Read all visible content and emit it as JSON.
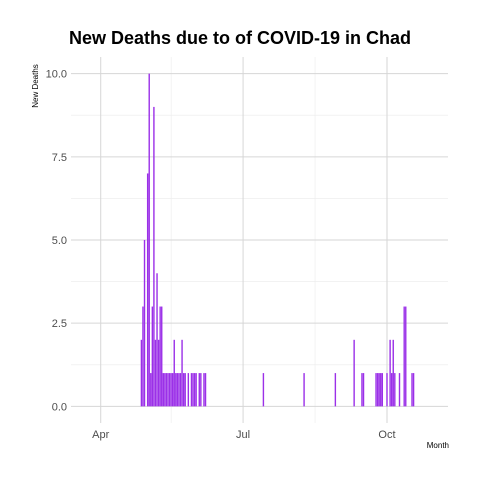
{
  "chart_data": {
    "type": "bar",
    "title": "New Deaths due to of COVID-19 in Chad",
    "xlabel": "Month",
    "ylabel": "New Deaths",
    "x_type": "date",
    "xlim": [
      "2020-03-13",
      "2020-11-09"
    ],
    "ylim": [
      -0.5,
      10.5
    ],
    "x_ticks": [
      {
        "date": "2020-04-01",
        "label": "Apr"
      },
      {
        "date": "2020-07-01",
        "label": "Jul"
      },
      {
        "date": "2020-10-01",
        "label": "Oct"
      }
    ],
    "x_minor_gridlines": [
      "2020-05-16",
      "2020-08-16"
    ],
    "y_ticks": [
      {
        "value": 0,
        "label": "0.0"
      },
      {
        "value": 2.5,
        "label": "2.5"
      },
      {
        "value": 5,
        "label": "5.0"
      },
      {
        "value": 7.5,
        "label": "7.5"
      },
      {
        "value": 10,
        "label": "10.0"
      }
    ],
    "bar_color": "#9b30e8",
    "grid": true,
    "series": [
      {
        "x": [
          "2020-04-27",
          "2020-04-28",
          "2020-04-29",
          "2020-05-01",
          "2020-05-02",
          "2020-05-03",
          "2020-05-04",
          "2020-05-05",
          "2020-05-06",
          "2020-05-07",
          "2020-05-08",
          "2020-05-09",
          "2020-05-10",
          "2020-05-11",
          "2020-05-12",
          "2020-05-13",
          "2020-05-14",
          "2020-05-15",
          "2020-05-16",
          "2020-05-17",
          "2020-05-18",
          "2020-05-19",
          "2020-05-20",
          "2020-05-21",
          "2020-05-22",
          "2020-05-23",
          "2020-05-24",
          "2020-05-25",
          "2020-05-27",
          "2020-05-29",
          "2020-05-30",
          "2020-05-31",
          "2020-06-01",
          "2020-06-03",
          "2020-06-04",
          "2020-06-06",
          "2020-06-07",
          "2020-07-14",
          "2020-08-09",
          "2020-08-29",
          "2020-09-10",
          "2020-09-15",
          "2020-09-16",
          "2020-09-24",
          "2020-09-25",
          "2020-09-26",
          "2020-09-27",
          "2020-09-28",
          "2020-10-01",
          "2020-10-03",
          "2020-10-04",
          "2020-10-05",
          "2020-10-06",
          "2020-10-09",
          "2020-10-12",
          "2020-10-13",
          "2020-10-17",
          "2020-10-18"
        ],
        "values": [
          2,
          3,
          5,
          7,
          10,
          1,
          3,
          9,
          2,
          4,
          2,
          3,
          3,
          1,
          1,
          1,
          1,
          1,
          1,
          1,
          2,
          1,
          1,
          1,
          1,
          2,
          1,
          1,
          1,
          1,
          1,
          1,
          1,
          1,
          1,
          1,
          1,
          1,
          1,
          1,
          2,
          1,
          1,
          1,
          1,
          1,
          1,
          1,
          1,
          2,
          1,
          2,
          1,
          1,
          3,
          3,
          1,
          1
        ]
      }
    ]
  }
}
